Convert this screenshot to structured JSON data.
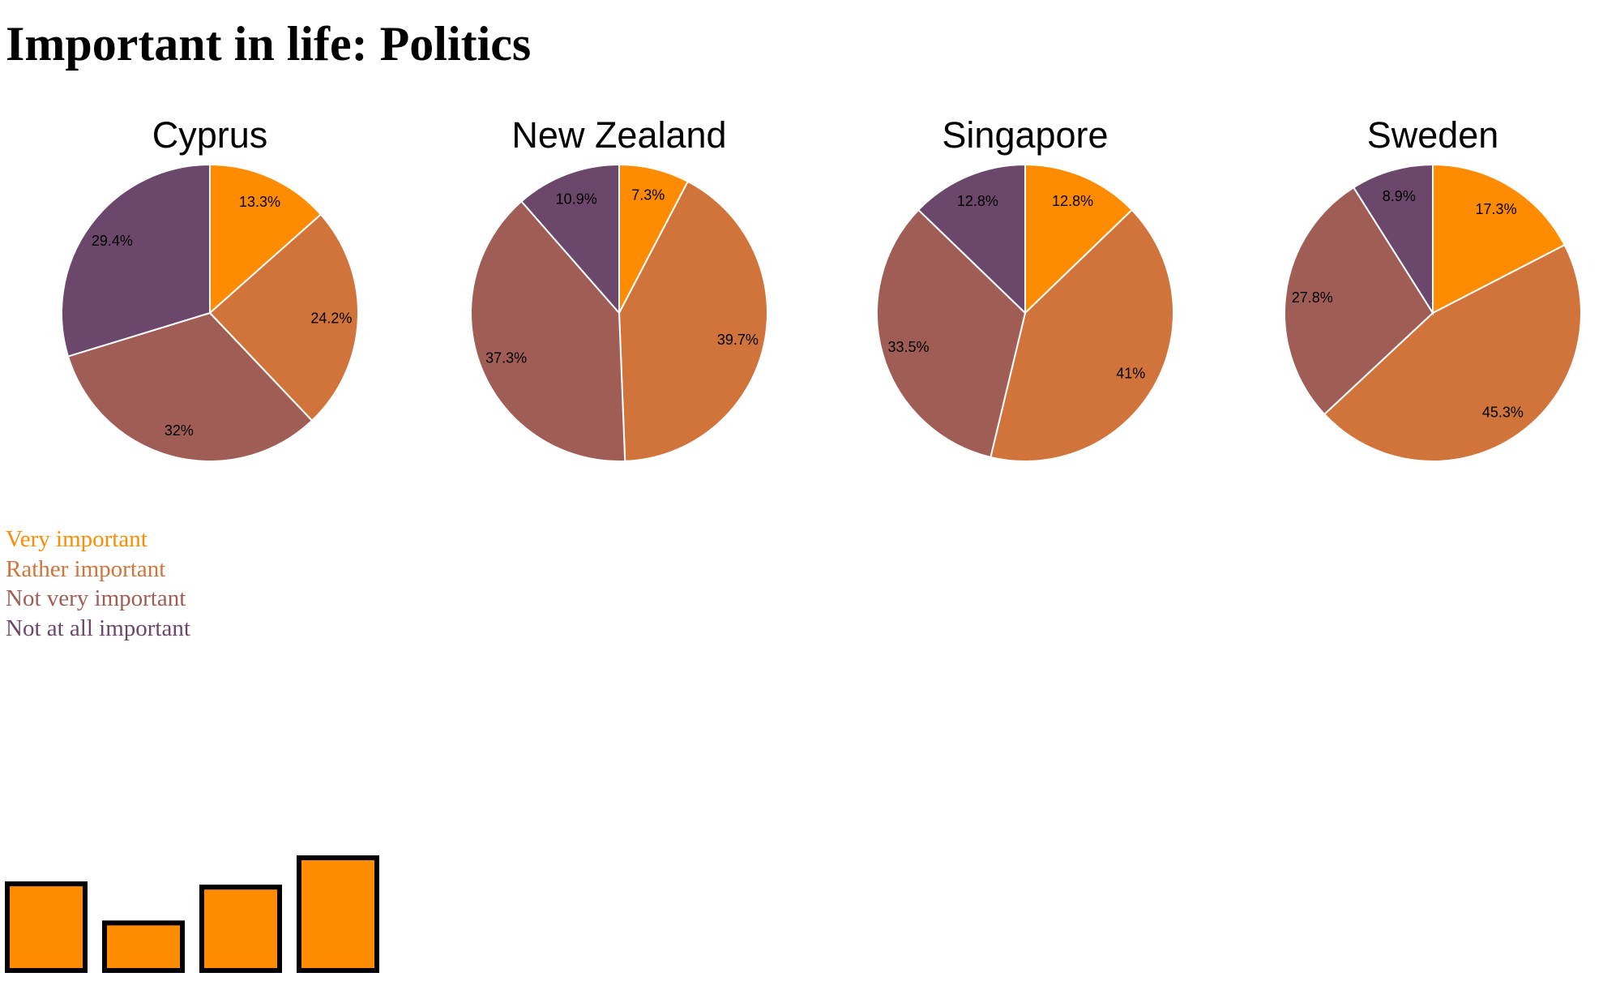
{
  "title": "Important in life: Politics",
  "legend": {
    "items": [
      {
        "label": "Very important",
        "color": "#ff8c00"
      },
      {
        "label": "Rather important",
        "color": "#d0743c"
      },
      {
        "label": "Not very important",
        "color": "#a05d56"
      },
      {
        "label": "Not at all important",
        "color": "#6b486b"
      }
    ]
  },
  "chart_data": {
    "type": "pie",
    "title": "Important in life: Politics",
    "categories": [
      "Very important",
      "Rather important",
      "Not very important",
      "Not at all important"
    ],
    "colors": [
      "#ff8c00",
      "#d0743c",
      "#a05d56",
      "#6b486b"
    ],
    "charts": [
      {
        "country": "Cyprus",
        "values": [
          13.3,
          24.2,
          32,
          29.4
        ],
        "labels": [
          "13.3%",
          "24.2%",
          "32%",
          "29.4%"
        ]
      },
      {
        "country": "New Zealand",
        "values": [
          7.3,
          39.7,
          37.3,
          10.9
        ],
        "labels": [
          "7.3%",
          "39.7%",
          "37.3%",
          "10.9%"
        ]
      },
      {
        "country": "Singapore",
        "values": [
          12.8,
          41,
          33.5,
          12.8
        ],
        "labels": [
          "12.8%",
          "41%",
          "33.5%",
          "12.8%"
        ]
      },
      {
        "country": "Sweden",
        "values": [
          17.3,
          45.3,
          27.8,
          8.9
        ],
        "labels": [
          "17.3%",
          "45.3%",
          "27.8%",
          "8.9%"
        ]
      }
    ],
    "bars": {
      "type": "bar",
      "color": "#ff8c00",
      "values": [
        13.3,
        7.3,
        12.8,
        17.3
      ]
    }
  }
}
